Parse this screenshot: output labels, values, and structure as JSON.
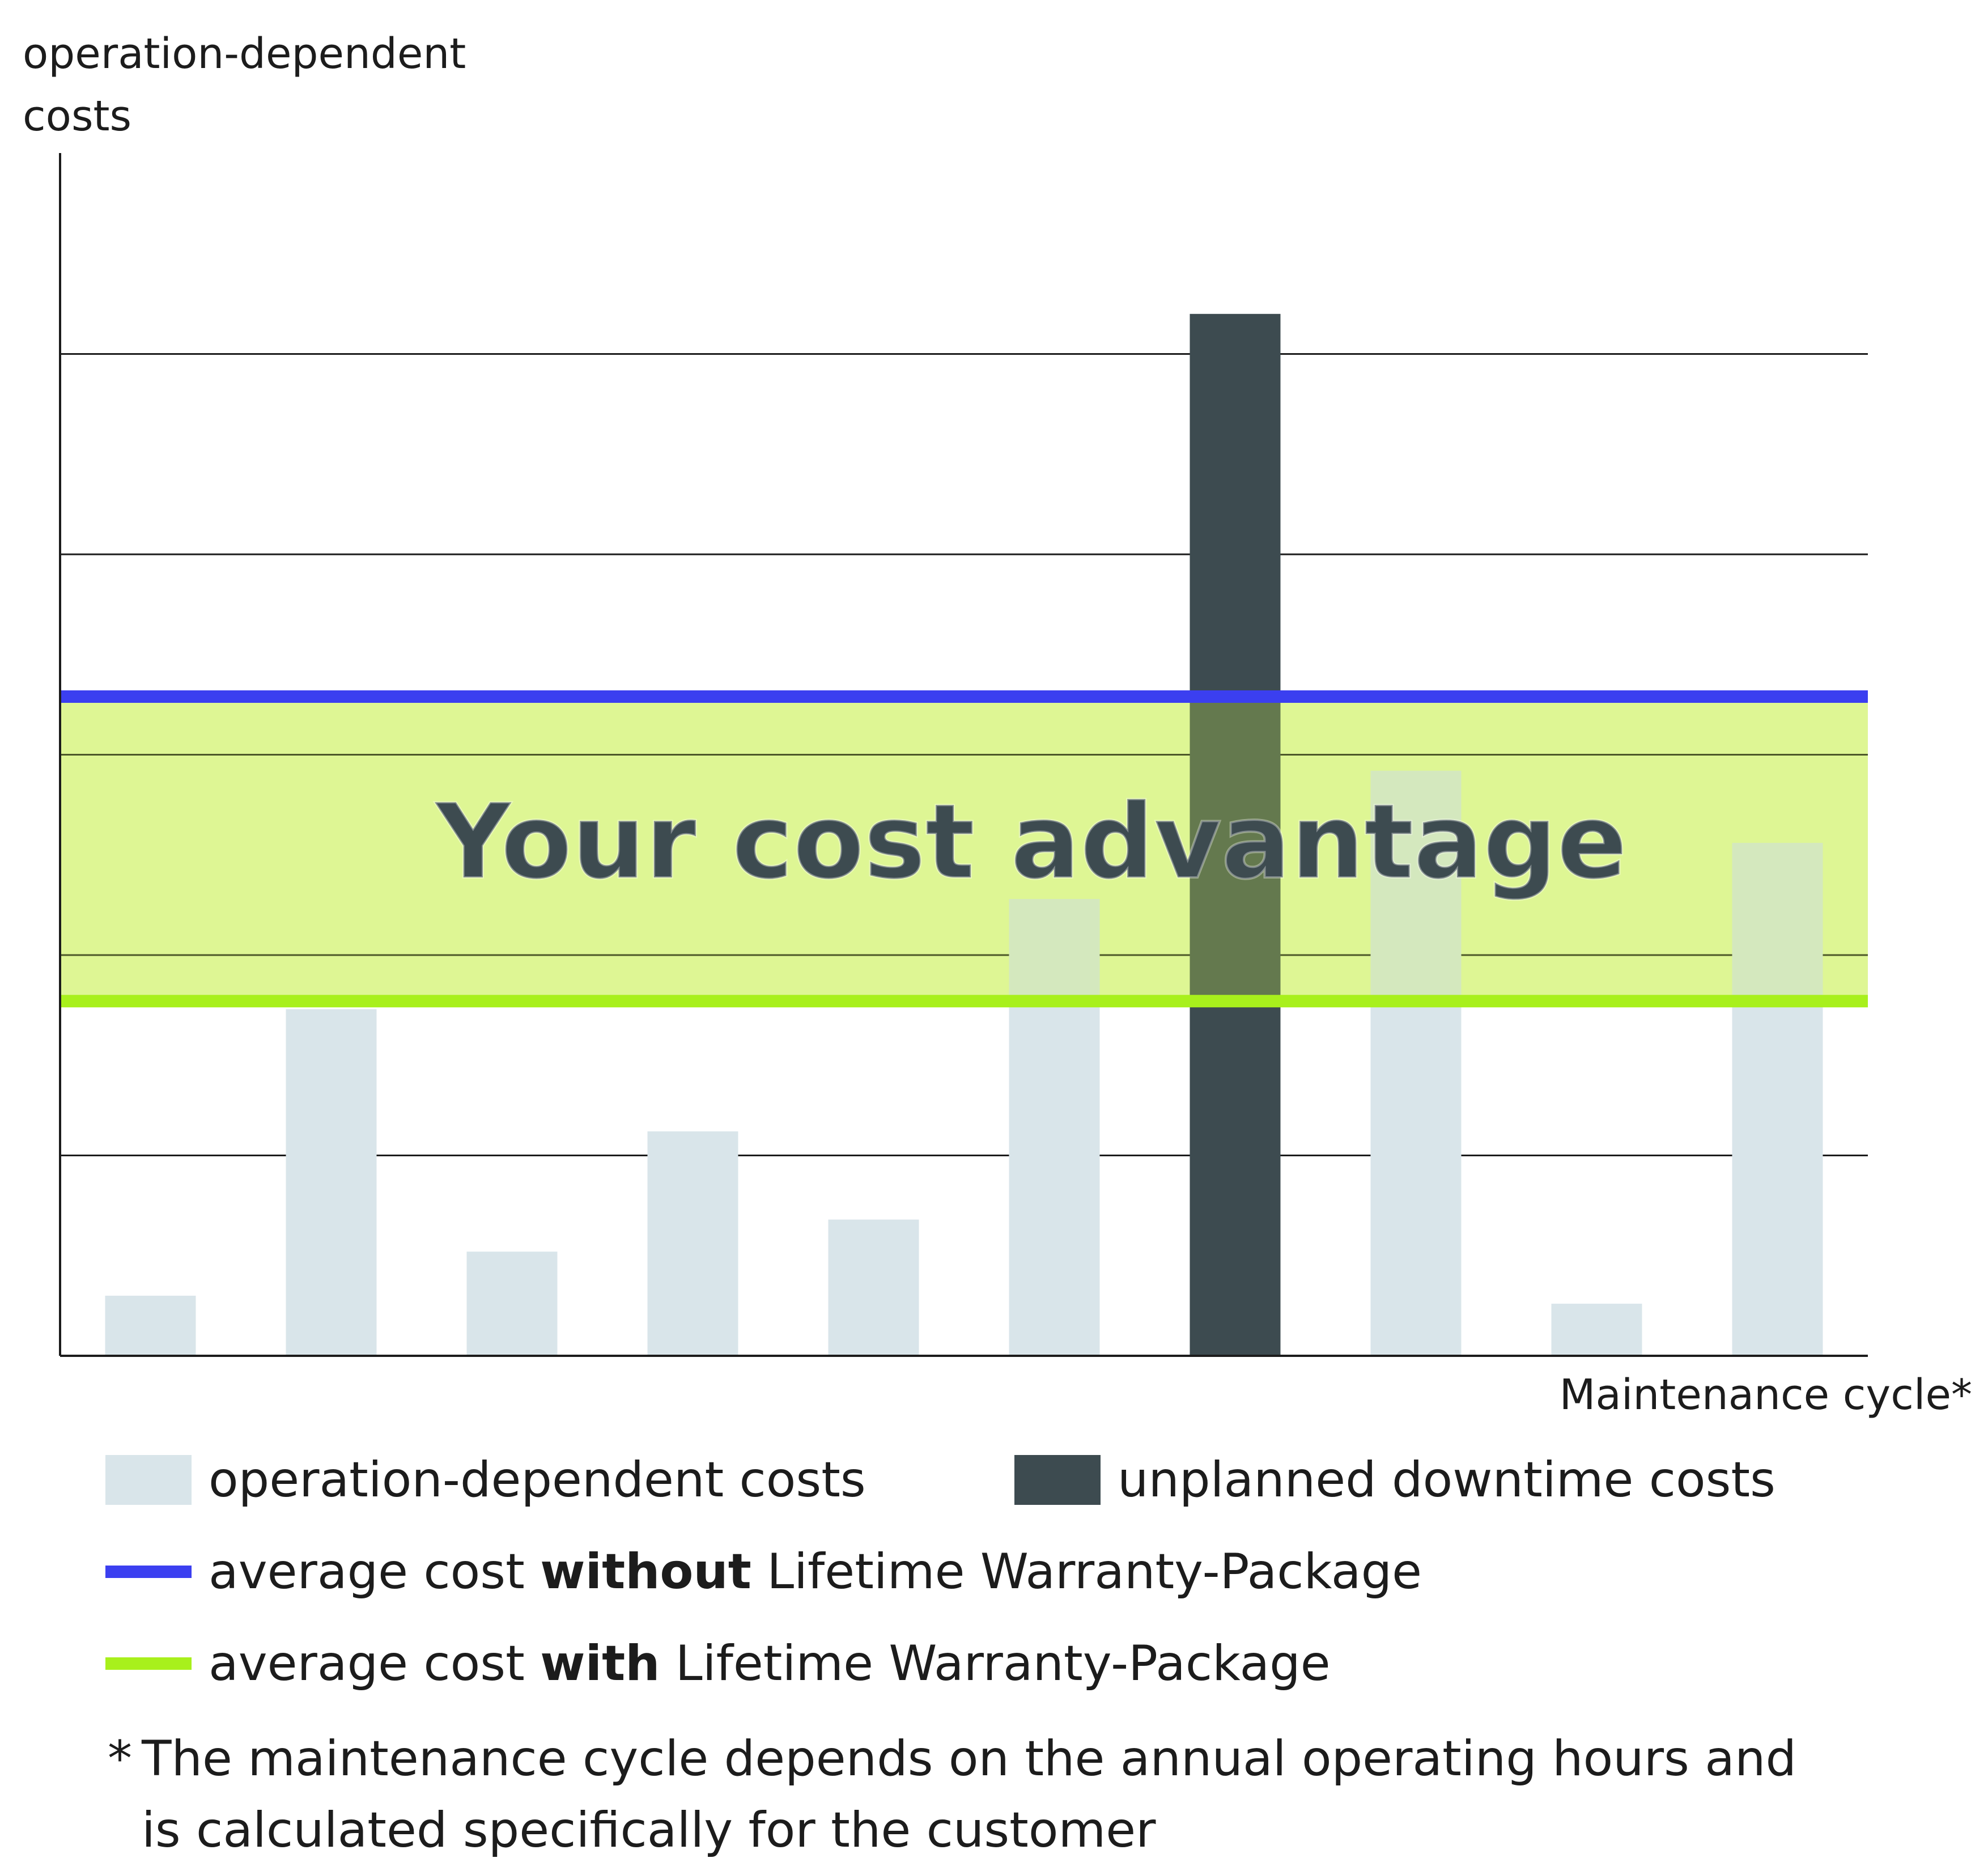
{
  "chart_data": {
    "type": "bar",
    "ylabel": [
      "operation-dependent",
      "costs"
    ],
    "xlabel": "Maintenance cycle*",
    "ylim": [
      0,
      6
    ],
    "grid": true,
    "gridlines": [
      1,
      2,
      3,
      4,
      5
    ],
    "categories": [
      "",
      "",
      "",
      "",
      "",
      "",
      "",
      "",
      "",
      ""
    ],
    "series": [
      {
        "name": "operation-dependent costs",
        "values": [
          0.3,
          1.73,
          0.52,
          1.12,
          0.68,
          2.28,
          0,
          2.92,
          0.26,
          2.56
        ],
        "color": "#d9e5ea"
      },
      {
        "name": "unplanned downtime costs",
        "values": [
          0,
          0,
          0,
          0,
          0,
          0,
          5.2,
          0,
          0,
          0
        ],
        "color": "#3d4b50"
      }
    ],
    "reference_lines": [
      {
        "name": "average cost without Lifetime Warranty-Package",
        "value": 3.29,
        "color": "#3b3ff0"
      },
      {
        "name": "average cost with Lifetime Warranty-Package",
        "value": 1.77,
        "color": "#a8f01c"
      }
    ],
    "band": {
      "from": 1.77,
      "to": 3.29,
      "label": "Your cost advantage",
      "color": "#e6f9b0"
    }
  },
  "legend": {
    "operation_label": "operation-dependent costs",
    "downtime_label": "unplanned downtime costs",
    "without_prefix": "average cost ",
    "without_bold": "without",
    "without_suffix": " Lifetime Warranty-Package",
    "with_prefix": "average cost ",
    "with_bold": "with",
    "with_suffix": " Lifetime Warranty-Package"
  },
  "footnote": {
    "marker": "*",
    "text": "The maintenance cycle depends on the annual operating hours and is calculated specifically for the customer"
  }
}
